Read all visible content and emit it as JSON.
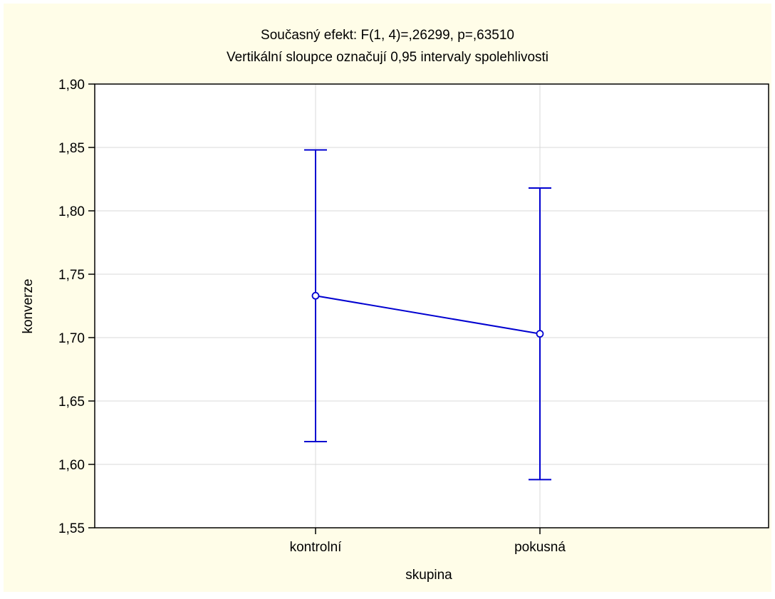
{
  "chart_data": {
    "type": "line",
    "title": "Současný efekt: F(1, 4)=,26299, p=,63510",
    "subtitle": "Vertikální sloupce označují 0,95 intervaly spolehlivosti",
    "xlabel": "skupina",
    "ylabel": "konverze",
    "categories": [
      "kontrolní",
      "pokusná"
    ],
    "series": [
      {
        "values": [
          1.733,
          1.703
        ],
        "ci_lower": [
          1.618,
          1.588
        ],
        "ci_upper": [
          1.848,
          1.818
        ]
      }
    ],
    "ylim": [
      1.55,
      1.9
    ],
    "yticks": [
      1.9,
      1.85,
      1.8,
      1.75,
      1.7,
      1.65,
      1.6,
      1.55
    ],
    "ytick_labels": [
      "1,90",
      "1,85",
      "1,80",
      "1,75",
      "1,70",
      "1,65",
      "1,60",
      "1,55"
    ],
    "grid": true,
    "colors": {
      "series": "#0000d0",
      "grid": "#d8d8d8",
      "background": "#fffde8",
      "plot_area": "#ffffff"
    }
  }
}
